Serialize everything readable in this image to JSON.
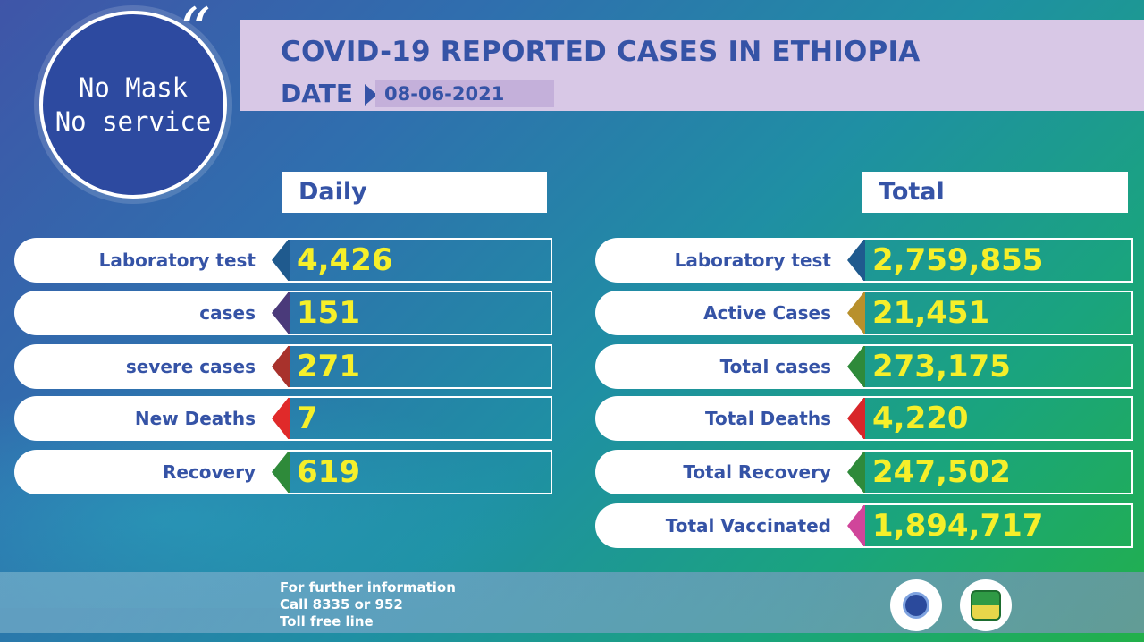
{
  "header": {
    "title": "COVID-19 REPORTED CASES IN ETHIOPIA",
    "date_label": "DATE",
    "date_value": "08-06-2021"
  },
  "badge": {
    "line1": "No Mask",
    "line2": "No service",
    "quote": "“"
  },
  "daily": {
    "heading": "Daily",
    "rows": [
      {
        "label": "Laboratory test",
        "value": "4,426",
        "accent": "#1f5a8e"
      },
      {
        "label": "cases",
        "value": "151",
        "accent": "#4a3a7a"
      },
      {
        "label": "severe cases",
        "value": "271",
        "accent": "#a8322c"
      },
      {
        "label": "New Deaths",
        "value": "7",
        "accent": "#e02a2a"
      },
      {
        "label": "Recovery",
        "value": "619",
        "accent": "#2e8a3a"
      }
    ]
  },
  "total": {
    "heading": "Total",
    "rows": [
      {
        "label": "Laboratory test",
        "value": "2,759,855",
        "accent": "#1f5a8e"
      },
      {
        "label": "Active Cases",
        "value": "21,451",
        "accent": "#b8902c"
      },
      {
        "label": "Total cases",
        "value": "273,175",
        "accent": "#2e8a3a"
      },
      {
        "label": "Total Deaths",
        "value": "4,220",
        "accent": "#d8262a"
      },
      {
        "label": "Total Recovery",
        "value": "247,502",
        "accent": "#2e8a3a"
      },
      {
        "label": "Total Vaccinated",
        "value": "1,894,717",
        "accent": "#d0459a"
      }
    ]
  },
  "footer": {
    "line1": "For further information",
    "line2": "Call 8335 or 952",
    "line3": "Toll free line"
  },
  "logos": {
    "left_icon": "health-ministry-logo",
    "right_icon": "public-health-institute-logo"
  }
}
